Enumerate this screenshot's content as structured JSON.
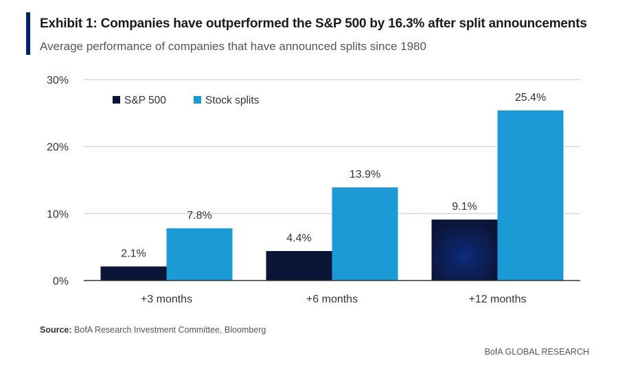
{
  "header": {
    "title": "Exhibit 1: Companies have outperformed the S&P 500 by 16.3% after split announcements",
    "subtitle": "Average performance of companies that have announced splits since 1980"
  },
  "footer": {
    "source_label": "Source:",
    "source_text": "BofA Research Investment Committee, Bloomberg",
    "brand": "BofA GLOBAL RESEARCH"
  },
  "colors": {
    "accent": "#012169",
    "sp500": "#0b1538",
    "splits": "#1c9ad6",
    "grid": "#d9d9d9",
    "axis": "#333333"
  },
  "chart_data": {
    "type": "bar",
    "categories": [
      "+3 months",
      "+6 months",
      "+12 months"
    ],
    "series": [
      {
        "name": "S&P 500",
        "values": [
          2.1,
          4.4,
          9.1
        ],
        "labels": [
          "2.1%",
          "4.4%",
          "9.1%"
        ]
      },
      {
        "name": "Stock splits",
        "values": [
          7.8,
          13.9,
          25.4
        ],
        "labels": [
          "7.8%",
          "13.9%",
          "25.4%"
        ]
      }
    ],
    "ylim": [
      0,
      30
    ],
    "yticks": [
      0,
      10,
      20,
      30
    ],
    "ytick_labels": [
      "0%",
      "10%",
      "20%",
      "30%"
    ],
    "grid": true,
    "legend": "top-left"
  }
}
